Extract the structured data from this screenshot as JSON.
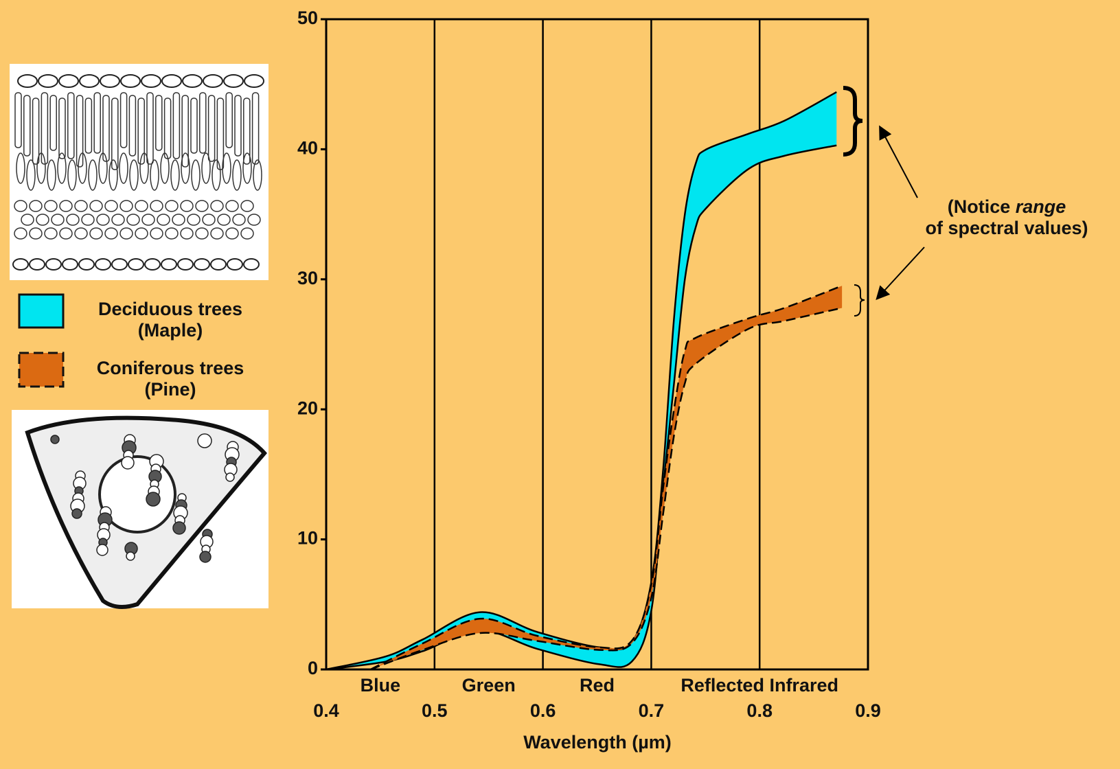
{
  "chart_data": {
    "type": "range",
    "xlabel": "Wavelength (µm)",
    "xlim": [
      0.4,
      0.9
    ],
    "xticks": [
      0.4,
      0.5,
      0.6,
      0.7,
      0.8,
      0.9
    ],
    "ylim": [
      0,
      50
    ],
    "yticks": [
      0,
      10,
      20,
      30,
      40,
      50
    ],
    "grid": true,
    "band_labels": [
      "Blue",
      "Green",
      "Red",
      "Reflected Infrared"
    ],
    "band_edges": [
      0.4,
      0.5,
      0.6,
      0.7,
      0.9
    ],
    "series": [
      {
        "name": "Deciduous trees",
        "subname": "(Maple)",
        "color": "#00e5f0",
        "dashed": false,
        "x": [
          0.4,
          0.455,
          0.489,
          0.542,
          0.594,
          0.652,
          0.682,
          0.7,
          0.711,
          0.721,
          0.731,
          0.741,
          0.751,
          0.79,
          0.823,
          0.871
        ],
        "upper": [
          0,
          1.0,
          2.3,
          4.4,
          2.9,
          1.7,
          2.1,
          6.7,
          15.4,
          27,
          35,
          38.9,
          40,
          41.2,
          42.2,
          44.4
        ],
        "lower": [
          0,
          0.6,
          1.4,
          3.0,
          1.6,
          0.4,
          0.6,
          4.5,
          14,
          22,
          30,
          34,
          35.5,
          38.5,
          39.5,
          40.3
        ]
      },
      {
        "name": "Coniferous trees",
        "subname": "(Pine)",
        "color": "#db6a12",
        "dashed": true,
        "x": [
          0.441,
          0.489,
          0.542,
          0.594,
          0.652,
          0.682,
          0.7,
          0.711,
          0.721,
          0.731,
          0.741,
          0.79,
          0.823,
          0.876
        ],
        "upper": [
          0,
          2.0,
          3.9,
          2.6,
          1.7,
          2.2,
          6.5,
          14,
          20,
          24.5,
          25.5,
          27,
          27.8,
          29.5
        ],
        "lower": [
          0,
          1.5,
          2.8,
          2.2,
          1.5,
          2.0,
          5.5,
          12,
          18,
          22,
          23.5,
          26.2,
          26.8,
          27.8
        ]
      }
    ],
    "annotation": {
      "before": "(Notice",
      "italic": "range",
      "line2": "of spectral values)"
    }
  }
}
